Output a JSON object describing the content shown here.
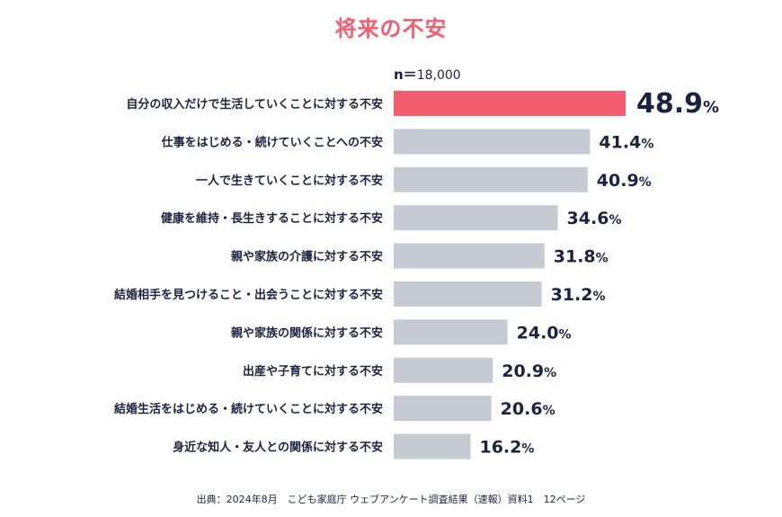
{
  "title": "将来の不安",
  "sample": {
    "label": "n＝",
    "value": "18,000"
  },
  "source": "出典：2024年8月　こども家庭庁 ウェブアンケート調査結果（速報）資料1　12ページ",
  "colors": {
    "highlight": "#f45e6e",
    "bar": "#c5cad3",
    "text": "#1a2340",
    "title": "#f0606e"
  },
  "chart_data": {
    "type": "bar",
    "orientation": "horizontal",
    "unit": "%",
    "categories": [
      "自分の収入だけで生活していくことに対する不安",
      "仕事をはじめる・続けていくことへの不安",
      "一人で生きていくことに対する不安",
      "健康を維持・長生きすることに対する不安",
      "親や家族の介護に対する不安",
      "結婚相手を見つけること・出会うことに対する不安",
      "親や家族の関係に対する不安",
      "出産や子育てに対する不安",
      "結婚生活をはじめる・続けていくことに対する不安",
      "身近な知人・友人との関係に対する不安"
    ],
    "values": [
      48.9,
      41.4,
      40.9,
      34.6,
      31.8,
      31.2,
      24.0,
      20.9,
      20.6,
      16.2
    ],
    "value_labels": [
      "48.9",
      "41.4",
      "40.9",
      "34.6",
      "31.8",
      "31.2",
      "24.0",
      "20.9",
      "20.6",
      "16.2"
    ],
    "highlight_index": 0,
    "xlim": [
      0,
      48.9
    ],
    "grid": false,
    "legend": "none"
  }
}
